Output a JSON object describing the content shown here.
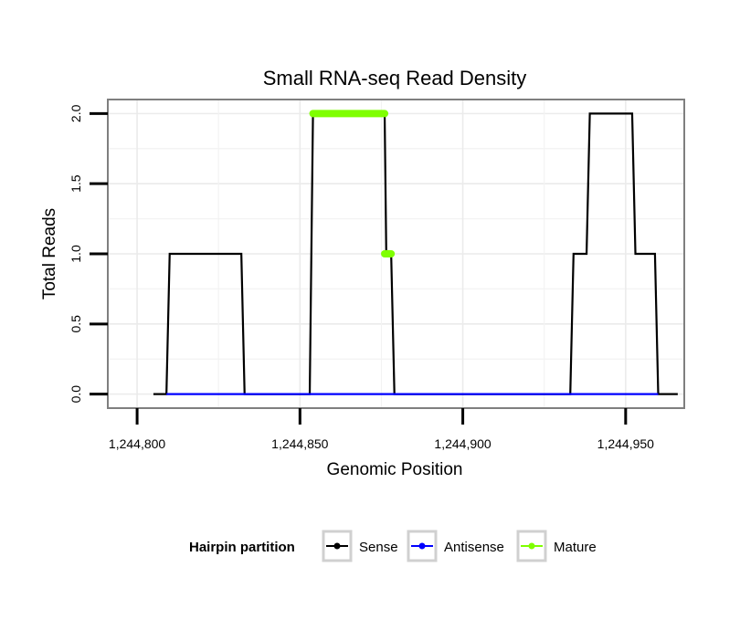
{
  "chart_data": {
    "type": "line",
    "title": "Small RNA-seq Read Density",
    "xlabel": "Genomic Position",
    "ylabel": "Total Reads",
    "xlim": [
      1244791,
      1244968
    ],
    "ylim": [
      -0.1,
      2.1
    ],
    "x_ticks": [
      1244800,
      1244850,
      1244900,
      1244950
    ],
    "x_tick_labels": [
      "1,244,800",
      "1,244,850",
      "1,244,900",
      "1,244,950"
    ],
    "y_ticks": [
      0.0,
      0.5,
      1.0,
      1.5,
      2.0
    ],
    "y_tick_labels": [
      "0.0",
      "0.5",
      "1.0",
      "1.5",
      "2.0"
    ],
    "grid": true,
    "legend": {
      "title": "Hairpin partition",
      "position": "bottom",
      "entries": [
        "Sense",
        "Antisense",
        "Mature"
      ]
    },
    "series": [
      {
        "name": "Sense",
        "color": "#000000",
        "x": [
          1244805,
          1244809,
          1244810,
          1244832,
          1244833,
          1244853,
          1244854,
          1244876,
          1244876.5,
          1244878,
          1244879,
          1244933,
          1244934,
          1244938,
          1244939,
          1244952,
          1244953,
          1244959,
          1244960,
          1244966
        ],
        "y": [
          0,
          0,
          1,
          1,
          0,
          0,
          2,
          2,
          1,
          1,
          0,
          0,
          1,
          1,
          2,
          2,
          1,
          1,
          0,
          0
        ]
      },
      {
        "name": "Antisense",
        "color": "#0000ff",
        "x": [
          1244809,
          1244960
        ],
        "y": [
          0,
          0
        ]
      },
      {
        "name": "Mature",
        "color": "#7fff00",
        "segments": [
          {
            "x": [
              1244854,
              1244876
            ],
            "y": [
              2,
              2
            ]
          },
          {
            "x": [
              1244876,
              1244878
            ],
            "y": [
              1,
              1
            ]
          }
        ]
      }
    ]
  }
}
